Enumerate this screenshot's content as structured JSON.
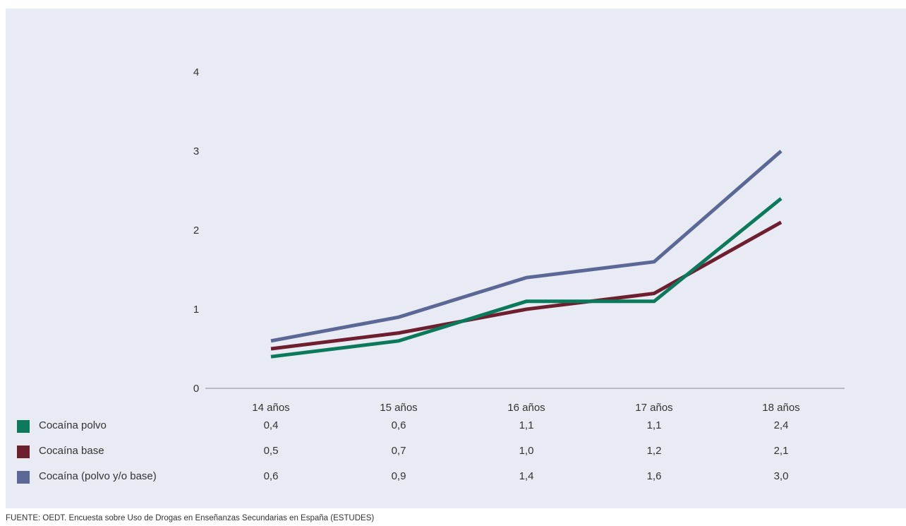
{
  "chart_data": {
    "type": "line",
    "categories": [
      "14 años",
      "15 años",
      "16 años",
      "17 años",
      "18 años"
    ],
    "ylim": [
      0,
      4
    ],
    "yticks": [
      "0",
      "1",
      "2",
      "3",
      "4"
    ],
    "grid": false,
    "series": [
      {
        "name": "Cocaína polvo",
        "color": "#0b7a5c",
        "values": [
          0.4,
          0.6,
          1.1,
          1.1,
          2.4
        ],
        "labels": [
          "0,4",
          "0,6",
          "1,1",
          "1,1",
          "2,4"
        ]
      },
      {
        "name": "Cocaína base",
        "color": "#6e1f2f",
        "values": [
          0.5,
          0.7,
          1.0,
          1.2,
          2.1
        ],
        "labels": [
          "0,5",
          "0,7",
          "1,0",
          "1,2",
          "2,1"
        ]
      },
      {
        "name": "Cocaína (polvo y/o base)",
        "color": "#5b6895",
        "values": [
          0.6,
          0.9,
          1.4,
          1.6,
          3.0
        ],
        "labels": [
          "0,6",
          "0,9",
          "1,4",
          "1,6",
          "3,0"
        ]
      }
    ]
  },
  "source": "FUENTE: OEDT. Encuesta sobre Uso de Drogas en Enseñanzas Secundarias en España (ESTUDES)"
}
